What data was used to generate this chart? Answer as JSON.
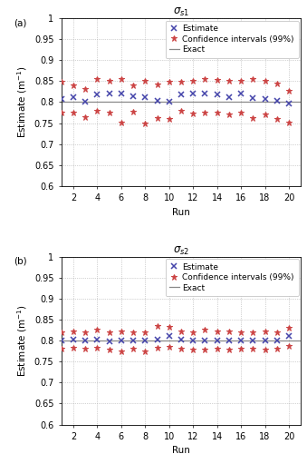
{
  "title_a": "$\\sigma_{s1}$",
  "title_b": "$\\sigma_{s2}$",
  "label_a": "(a)",
  "label_b": "(b)",
  "xlabel": "Run",
  "ylabel": "Estimate (m$^{-1}$)",
  "ylim": [
    0.6,
    1.0
  ],
  "yticks": [
    0.6,
    0.65,
    0.7,
    0.75,
    0.8,
    0.85,
    0.9,
    0.95,
    1.0
  ],
  "xticks": [
    2,
    4,
    6,
    8,
    10,
    12,
    14,
    16,
    18,
    20
  ],
  "exact_a": 0.8,
  "exact_b": 0.8,
  "runs": [
    1,
    2,
    3,
    4,
    5,
    6,
    7,
    8,
    9,
    10,
    11,
    12,
    13,
    14,
    15,
    16,
    17,
    18,
    19,
    20
  ],
  "estimate_a": [
    0.808,
    0.812,
    0.8,
    0.818,
    0.82,
    0.82,
    0.813,
    0.812,
    0.803,
    0.802,
    0.818,
    0.82,
    0.82,
    0.818,
    0.812,
    0.82,
    0.81,
    0.808,
    0.803,
    0.796
  ],
  "ci_upper_a": [
    0.848,
    0.84,
    0.832,
    0.855,
    0.85,
    0.855,
    0.84,
    0.85,
    0.842,
    0.848,
    0.848,
    0.85,
    0.855,
    0.852,
    0.85,
    0.85,
    0.855,
    0.85,
    0.845,
    0.828
  ],
  "ci_lower_a": [
    0.775,
    0.776,
    0.765,
    0.78,
    0.775,
    0.752,
    0.778,
    0.748,
    0.762,
    0.76,
    0.78,
    0.772,
    0.775,
    0.775,
    0.77,
    0.775,
    0.762,
    0.77,
    0.76,
    0.752
  ],
  "estimate_b": [
    0.8,
    0.803,
    0.8,
    0.803,
    0.798,
    0.801,
    0.8,
    0.8,
    0.803,
    0.81,
    0.803,
    0.8,
    0.8,
    0.8,
    0.8,
    0.8,
    0.8,
    0.8,
    0.8,
    0.81
  ],
  "ci_upper_b": [
    0.82,
    0.822,
    0.82,
    0.825,
    0.82,
    0.822,
    0.82,
    0.82,
    0.835,
    0.832,
    0.822,
    0.82,
    0.825,
    0.822,
    0.822,
    0.82,
    0.82,
    0.822,
    0.82,
    0.83
  ],
  "ci_lower_b": [
    0.78,
    0.782,
    0.78,
    0.782,
    0.778,
    0.775,
    0.78,
    0.775,
    0.782,
    0.785,
    0.78,
    0.778,
    0.778,
    0.78,
    0.778,
    0.78,
    0.78,
    0.778,
    0.78,
    0.788
  ],
  "color_estimate": "#4444aa",
  "color_ci": "#cc4444",
  "color_exact": "#888888",
  "legend_labels": [
    "Estimate",
    "Confidence intervals (99%)",
    "Exact"
  ],
  "marker_estimate": "x",
  "marker_ci": "*",
  "fontsize_tick": 7,
  "fontsize_label": 7.5,
  "fontsize_title": 8.5,
  "fontsize_legend": 6.5
}
